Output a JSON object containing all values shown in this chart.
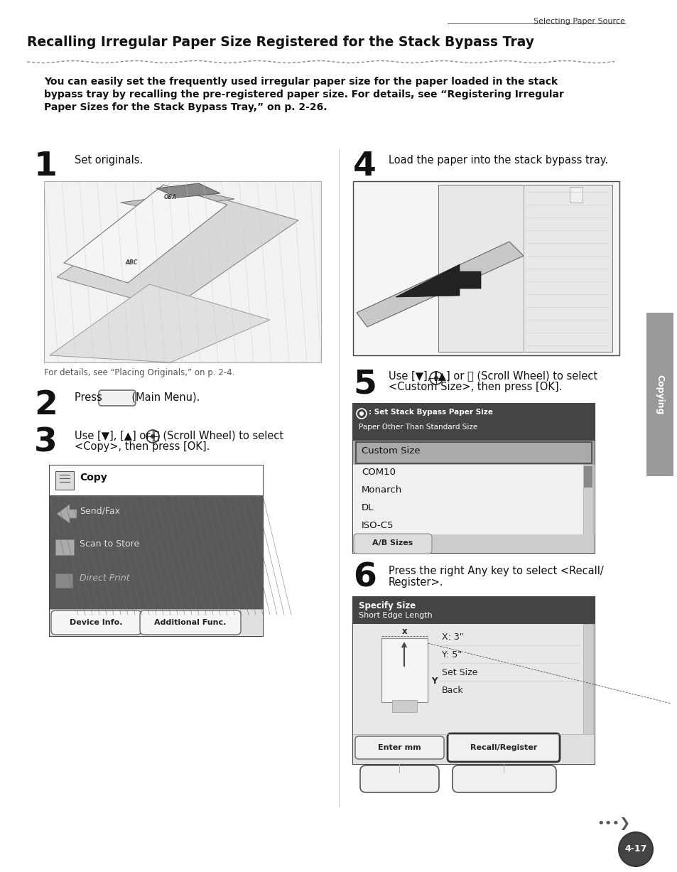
{
  "page_width": 9.54,
  "page_height": 12.27,
  "bg_color": "#ffffff",
  "header_text": "Selecting Paper Source",
  "title": "Recalling Irregular Paper Size Registered for the Stack Bypass Tray",
  "intro_line1": "You can easily set the frequently used irregular paper size for the paper loaded in the stack",
  "intro_line2": "bypass tray by recalling the pre-registered paper size. For details, see “Registering Irregular",
  "intro_line3": "Paper Sizes for the Stack Bypass Tray,” on p. 2-26.",
  "step1_num": "1",
  "step1_text": "Set originals.",
  "step1_caption": "For details, see “Placing Originals,” on p. 2-4.",
  "step2_num": "2",
  "step2_text": "Press         (Main Menu).",
  "step3_num": "3",
  "step3_line1": "Use [▼], [▲] or Ⓞ (Scroll Wheel) to select",
  "step3_line2": "<Copy>, then press [OK].",
  "step4_num": "4",
  "step4_text": "Load the paper into the stack bypass tray.",
  "step5_num": "5",
  "step5_line1": "Use [▼], [▲] or Ⓞ (Scroll Wheel) to select",
  "step5_line2": "<Custom Size>, then press [OK].",
  "step6_num": "6",
  "step6_line1": "Press the right Any key to select <Recall/",
  "step6_line2": "Register>.",
  "menu3_items": [
    "Copy",
    "Send/Fax",
    "Scan to Store",
    "Direct Print"
  ],
  "menu5_header1": "Ⓞ : Set Stack Bypass Paper Size",
  "menu5_header2": "Paper Other Than Standard Size",
  "menu5_items": [
    "Custom Size",
    "COM10",
    "Monarch",
    "DL",
    "ISO-C5"
  ],
  "menu5_bottom": "A/B Sizes",
  "dialog6_title": "Specify Size",
  "dialog6_sub": "Short Edge Length",
  "sidebar_text": "Copying",
  "page_num": "4-17",
  "nav_dots": "•••❯"
}
